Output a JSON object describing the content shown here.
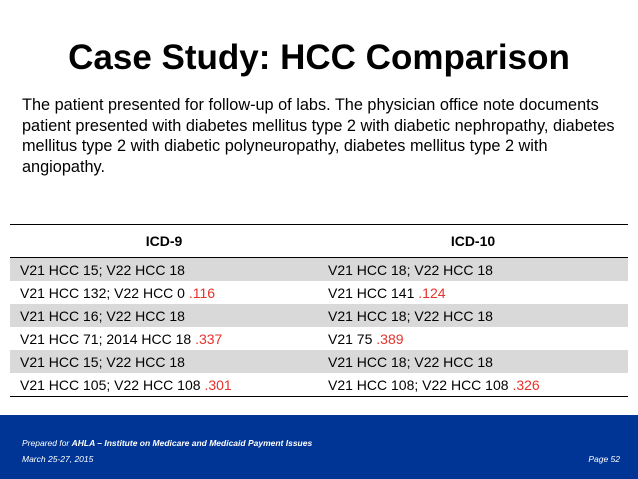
{
  "slide": {
    "title": "Case Study: HCC Comparison",
    "body": "The patient presented for follow-up of labs.  The physician office note documents patient presented with diabetes mellitus type 2 with diabetic nephropathy, diabetes mellitus type 2 with diabetic polyneuropathy, diabetes mellitus type 2 with angiopathy."
  },
  "table": {
    "headers": [
      "ICD-9",
      "ICD-10"
    ],
    "rows": [
      {
        "icd9": "V21 HCC 15; V22 HCC 18",
        "icd9_score": "",
        "icd10": "V21 HCC 18; V22 HCC 18",
        "icd10_score": ""
      },
      {
        "icd9": "V21 HCC 132; V22 HCC 0 ",
        "icd9_score": ".116",
        "icd10": "V21 HCC 141 ",
        "icd10_score": ".124"
      },
      {
        "icd9": "V21 HCC 16; V22 HCC 18",
        "icd9_score": "",
        "icd10": "V21 HCC 18; V22 HCC 18",
        "icd10_score": ""
      },
      {
        "icd9": "V21 HCC 71; 2014 HCC 18 ",
        "icd9_score": ".337",
        "icd10": "V21 75 ",
        "icd10_score": ".389"
      },
      {
        "icd9": "V21 HCC 15; V22 HCC 18",
        "icd9_score": "",
        "icd10": "V21 HCC 18; V22 HCC 18",
        "icd10_score": ""
      },
      {
        "icd9": "V21 HCC 105; V22 HCC 108 ",
        "icd9_score": ".301",
        "icd10": "V21 HCC 108; V22 HCC 108 ",
        "icd10_score": ".326"
      }
    ]
  },
  "footer": {
    "prepared_prefix": "Prepared for ",
    "prepared_org": "AHLA – Institute on Medicare and Medicaid Payment Issues",
    "date": "March 25-27, 2015",
    "page": "Page 52"
  },
  "colors": {
    "footer_bg": "#003595",
    "score_red": "#e8322b",
    "row_shade": "#d9d9d9"
  }
}
